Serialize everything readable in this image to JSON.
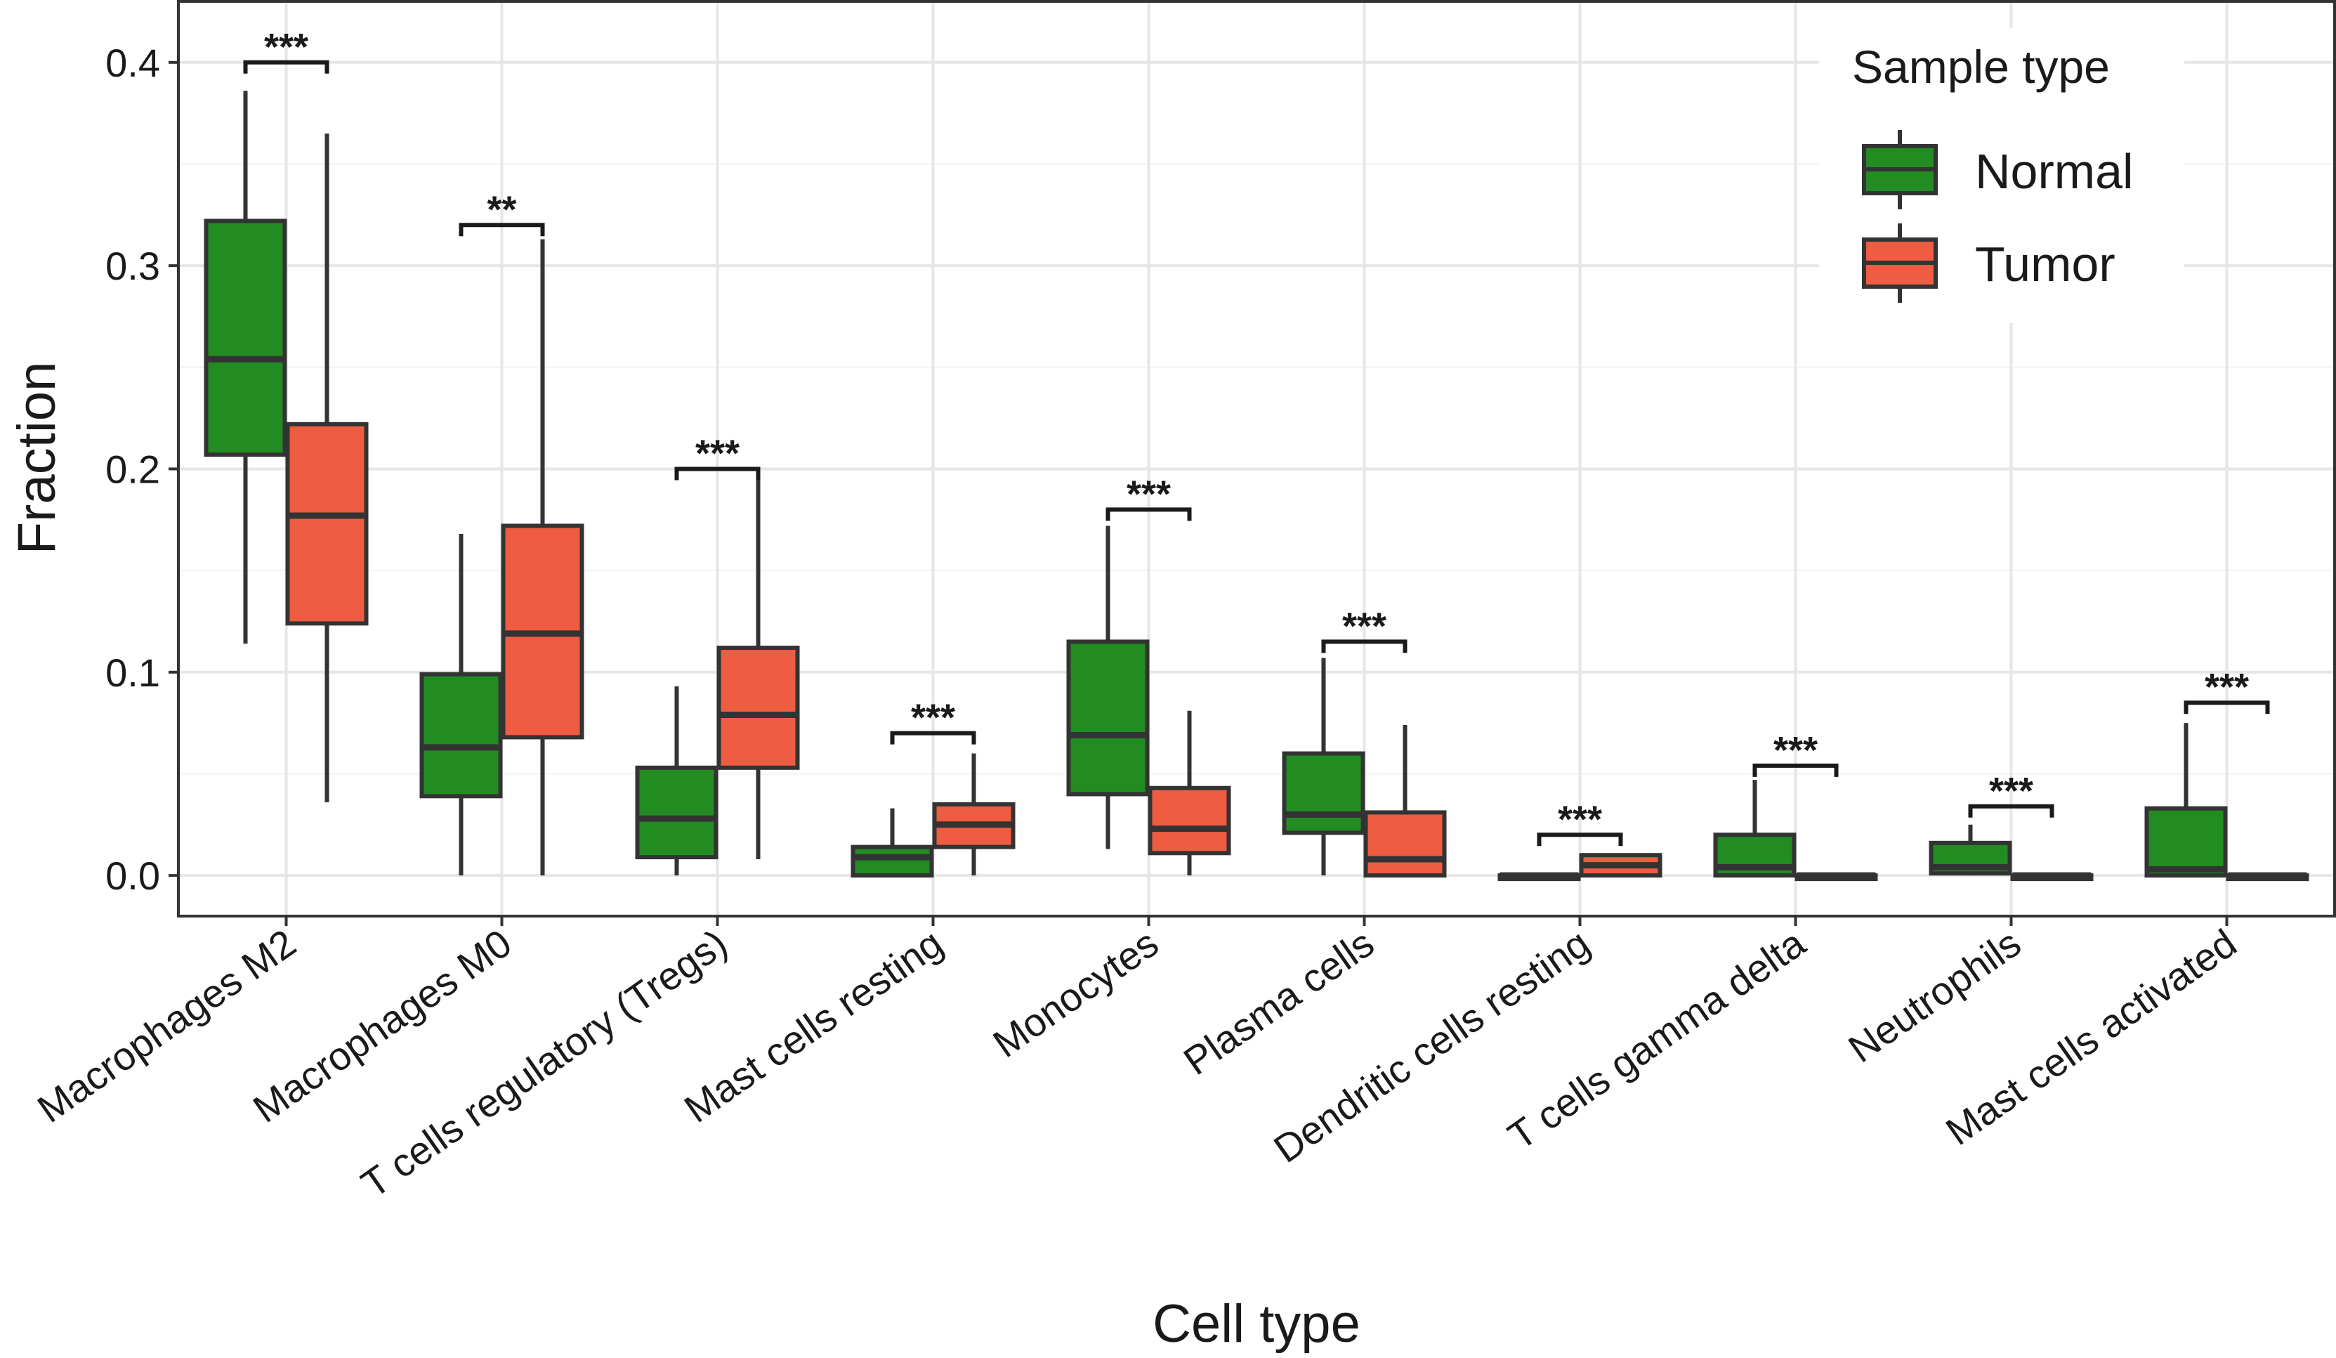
{
  "chart_data": {
    "type": "boxplot",
    "xlabel": "Cell type",
    "ylabel": "Fraction",
    "ylim": [
      -0.02,
      0.43
    ],
    "yticks": [
      0.0,
      0.1,
      0.2,
      0.3,
      0.4
    ],
    "ytick_labels": [
      "0.0",
      "0.1",
      "0.2",
      "0.3",
      "0.4"
    ],
    "grid": true,
    "legend": {
      "title": "Sample type",
      "position": "top-right",
      "entries": [
        {
          "name": "Normal",
          "color": "#228B22"
        },
        {
          "name": "Tumor",
          "color": "#EE5C42"
        }
      ]
    },
    "categories": [
      "Macrophages M2",
      "Macrophages M0",
      "T cells regulatory (Tregs)",
      "Mast cells resting",
      "Monocytes",
      "Plasma cells",
      "Dendritic cells resting",
      "T cells gamma delta",
      "Neutrophils",
      "Mast cells activated"
    ],
    "series": [
      {
        "name": "Normal",
        "color": "#228B22",
        "boxes": [
          {
            "min": 0.114,
            "q1": 0.207,
            "median": 0.254,
            "q3": 0.322,
            "max": 0.386
          },
          {
            "min": 0.0,
            "q1": 0.039,
            "median": 0.063,
            "q3": 0.099,
            "max": 0.168
          },
          {
            "min": 0.0,
            "q1": 0.009,
            "median": 0.028,
            "q3": 0.053,
            "max": 0.093
          },
          {
            "min": 0.0,
            "q1": 0.0,
            "median": 0.009,
            "q3": 0.014,
            "max": 0.033
          },
          {
            "min": 0.013,
            "q1": 0.04,
            "median": 0.069,
            "q3": 0.115,
            "max": 0.172
          },
          {
            "min": 0.0,
            "q1": 0.021,
            "median": 0.03,
            "q3": 0.06,
            "max": 0.107
          },
          {
            "min": 0.0,
            "q1": 0.0,
            "median": 0.0,
            "q3": 0.0,
            "max": 0.0
          },
          {
            "min": 0.0,
            "q1": 0.0,
            "median": 0.004,
            "q3": 0.02,
            "max": 0.047
          },
          {
            "min": 0.0,
            "q1": 0.001,
            "median": 0.004,
            "q3": 0.016,
            "max": 0.025
          },
          {
            "min": 0.0,
            "q1": 0.0,
            "median": 0.003,
            "q3": 0.033,
            "max": 0.075
          }
        ]
      },
      {
        "name": "Tumor",
        "color": "#EE5C42",
        "boxes": [
          {
            "min": 0.036,
            "q1": 0.124,
            "median": 0.177,
            "q3": 0.222,
            "max": 0.365
          },
          {
            "min": 0.0,
            "q1": 0.068,
            "median": 0.119,
            "q3": 0.172,
            "max": 0.313
          },
          {
            "min": 0.008,
            "q1": 0.053,
            "median": 0.079,
            "q3": 0.112,
            "max": 0.195
          },
          {
            "min": 0.0,
            "q1": 0.014,
            "median": 0.025,
            "q3": 0.035,
            "max": 0.06
          },
          {
            "min": 0.0,
            "q1": 0.011,
            "median": 0.023,
            "q3": 0.043,
            "max": 0.081
          },
          {
            "min": 0.0,
            "q1": 0.0,
            "median": 0.008,
            "q3": 0.031,
            "max": 0.074
          },
          {
            "min": 0.0,
            "q1": 0.0,
            "median": 0.005,
            "q3": 0.01,
            "max": 0.01
          },
          {
            "min": 0.0,
            "q1": 0.0,
            "median": 0.0,
            "q3": 0.0,
            "max": 0.0
          },
          {
            "min": 0.0,
            "q1": 0.0,
            "median": 0.0,
            "q3": 0.0,
            "max": 0.0
          },
          {
            "min": 0.0,
            "q1": 0.0,
            "median": 0.0,
            "q3": 0.0,
            "max": 0.0
          }
        ]
      }
    ],
    "significance": [
      {
        "label": "***",
        "y": 0.4
      },
      {
        "label": "**",
        "y": 0.32
      },
      {
        "label": "***",
        "y": 0.2
      },
      {
        "label": "***",
        "y": 0.07
      },
      {
        "label": "***",
        "y": 0.18
      },
      {
        "label": "***",
        "y": 0.115
      },
      {
        "label": "***",
        "y": 0.02
      },
      {
        "label": "***",
        "y": 0.054
      },
      {
        "label": "***",
        "y": 0.034
      },
      {
        "label": "***",
        "y": 0.085
      }
    ]
  }
}
